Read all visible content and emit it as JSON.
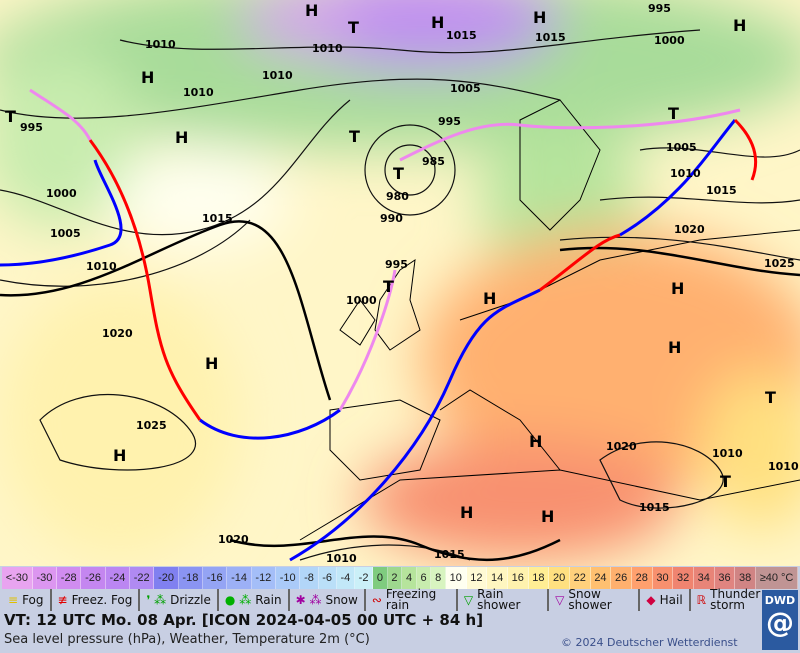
{
  "map": {
    "pressure_labels": [
      {
        "v": "1010"
      },
      {
        "v": "1010"
      },
      {
        "v": "1015"
      },
      {
        "v": "1015"
      },
      {
        "v": "995"
      },
      {
        "v": "1000"
      },
      {
        "v": "1010"
      },
      {
        "v": "1010"
      },
      {
        "v": "1005"
      },
      {
        "v": "995"
      },
      {
        "v": "995"
      },
      {
        "v": "985"
      },
      {
        "v": "980"
      },
      {
        "v": "990"
      },
      {
        "v": "1000"
      },
      {
        "v": "1005"
      },
      {
        "v": "1010"
      },
      {
        "v": "1015"
      },
      {
        "v": "1005"
      },
      {
        "v": "1010"
      },
      {
        "v": "1015"
      },
      {
        "v": "1020"
      },
      {
        "v": "1025"
      },
      {
        "v": "995"
      },
      {
        "v": "1000"
      },
      {
        "v": "1020"
      },
      {
        "v": "1025"
      },
      {
        "v": "1020"
      },
      {
        "v": "1010"
      },
      {
        "v": "1015"
      },
      {
        "v": "1020"
      },
      {
        "v": "1010"
      },
      {
        "v": "1015"
      },
      {
        "v": "1010"
      }
    ],
    "high_label": "H",
    "low_label": "T",
    "front_colors": {
      "warm": "#ff0000",
      "cold": "#0000ff",
      "occlusion": "#ee88ee"
    }
  },
  "scale": [
    {
      "label": "<-30",
      "color": "#e8a4f0"
    },
    {
      "label": "-30",
      "color": "#dc96f0"
    },
    {
      "label": "-28",
      "color": "#d08cf0"
    },
    {
      "label": "-26",
      "color": "#c486f0"
    },
    {
      "label": "-24",
      "color": "#bb86f2"
    },
    {
      "label": "-22",
      "color": "#b08af2"
    },
    {
      "label": "-20",
      "color": "#8080f0"
    },
    {
      "label": "-18",
      "color": "#8a94f2"
    },
    {
      "label": "-16",
      "color": "#94a4f4"
    },
    {
      "label": "-14",
      "color": "#9cb0f6"
    },
    {
      "label": "-12",
      "color": "#a4bef8"
    },
    {
      "label": "-10",
      "color": "#aacaf8"
    },
    {
      "label": "-8",
      "color": "#b2d6f8"
    },
    {
      "label": "-6",
      "color": "#badff8"
    },
    {
      "label": "-4",
      "color": "#c2e8f8"
    },
    {
      "label": "-2",
      "color": "#cbf0f8"
    },
    {
      "label": "0",
      "color": "#7fcc7f"
    },
    {
      "label": "2",
      "color": "#9ed88e"
    },
    {
      "label": "4",
      "color": "#b6e49c"
    },
    {
      "label": "6",
      "color": "#c8ecae"
    },
    {
      "label": "8",
      "color": "#d8f4c0"
    },
    {
      "label": "10",
      "color": "#fffff0"
    },
    {
      "label": "12",
      "color": "#fffad4"
    },
    {
      "label": "14",
      "color": "#fff6c0"
    },
    {
      "label": "16",
      "color": "#fff2ae"
    },
    {
      "label": "18",
      "color": "#ffee94"
    },
    {
      "label": "20",
      "color": "#ffe080"
    },
    {
      "label": "22",
      "color": "#ffd07c"
    },
    {
      "label": "24",
      "color": "#ffc070"
    },
    {
      "label": "26",
      "color": "#ffb06e"
    },
    {
      "label": "28",
      "color": "#ffa06e"
    },
    {
      "label": "30",
      "color": "#f8906e"
    },
    {
      "label": "32",
      "color": "#f08470"
    },
    {
      "label": "34",
      "color": "#e88478"
    },
    {
      "label": "36",
      "color": "#e08480"
    },
    {
      "label": "38",
      "color": "#d08484"
    },
    {
      "label": "≥40 °C",
      "color": "#c09494"
    }
  ],
  "legend": [
    {
      "icon": "fog-icon",
      "glyph": "≡",
      "color": "#e0c000",
      "label": "Fog"
    },
    {
      "icon": "freezing-fog-icon",
      "glyph": "≢",
      "color": "#e00000",
      "label": "Freez. Fog"
    },
    {
      "icon": "drizzle-icon",
      "glyph": "❜ ⁂",
      "color": "#00a000",
      "label": "Drizzle"
    },
    {
      "icon": "rain-icon",
      "glyph": "● ⁂",
      "color": "#00b000",
      "label": "Rain"
    },
    {
      "icon": "snow-icon",
      "glyph": "✱ ⁂",
      "color": "#a000a0",
      "label": "Snow"
    },
    {
      "icon": "freezing-rain-icon",
      "glyph": "∾",
      "color": "#d00000",
      "label": "Freezing rain"
    },
    {
      "icon": "rain-shower-icon",
      "glyph": "▽",
      "color": "#00a000",
      "label": "Rain shower"
    },
    {
      "icon": "snow-shower-icon",
      "glyph": "▽",
      "color": "#a000a0",
      "label": "Snow shower"
    },
    {
      "icon": "hail-icon",
      "glyph": "◆",
      "color": "#d00040",
      "label": "Hail"
    },
    {
      "icon": "thunderstorm-icon",
      "glyph": "ℝ",
      "color": "#d00000",
      "label": "Thunder storm"
    }
  ],
  "footer": {
    "vt": "VT: 12 UTC Mo.  08 Apr. [ICON 2024-04-05  00 UTC + 84 h]",
    "subtitle": "Sea level pressure (hPa), Weather, Temperature 2m (°C)",
    "copyright": "© 2024 Deutscher Wetterdienst",
    "logo_text": "DWD"
  }
}
